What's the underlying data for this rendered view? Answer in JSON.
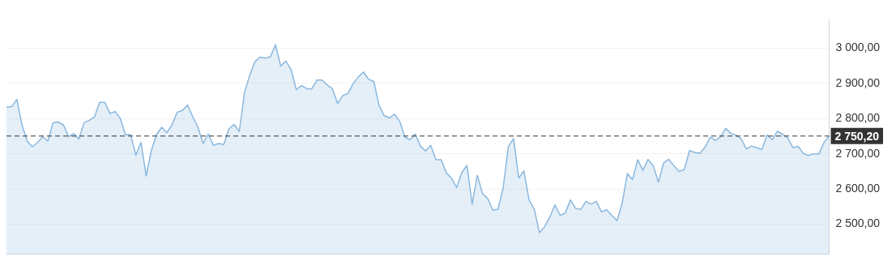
{
  "chart_data": {
    "type": "area",
    "categories": [
      null,
      null,
      null,
      null,
      null,
      null,
      null,
      null,
      null,
      null,
      null,
      null,
      null,
      null,
      null,
      null,
      null,
      null,
      null,
      null,
      null,
      null,
      null,
      null,
      null,
      null,
      null,
      null,
      null,
      null,
      null,
      null,
      null,
      null,
      null,
      null,
      null,
      null,
      null,
      null,
      null,
      null,
      null,
      null,
      null,
      null,
      null,
      null,
      null,
      null,
      null,
      null,
      null,
      null,
      null,
      null,
      null,
      null,
      null,
      null,
      null,
      null,
      null,
      null,
      null,
      null,
      null,
      null,
      null,
      null,
      null,
      null,
      null,
      null,
      null,
      null,
      null,
      null,
      null,
      null,
      null,
      null,
      null,
      null,
      null,
      null,
      null,
      null,
      null,
      null,
      null,
      null,
      null,
      null,
      null,
      null,
      null,
      null,
      null,
      null,
      null,
      null,
      null,
      null,
      null,
      null,
      null,
      null,
      null,
      null,
      null,
      null,
      null,
      null,
      null,
      null,
      null,
      null,
      null,
      null,
      null,
      null,
      null,
      null,
      null,
      null,
      null,
      null,
      null,
      null,
      null,
      null,
      null,
      null,
      null,
      null,
      null,
      null,
      null,
      null,
      null,
      null,
      null,
      null,
      null,
      null,
      null,
      null,
      null,
      null,
      null,
      null,
      null,
      null,
      null,
      null,
      null,
      null,
      null,
      null
    ],
    "series": [
      {
        "color": "#8ab8de",
        "values": [
          2832,
          2834,
          2854,
          2782,
          2736,
          2720,
          2732,
          2748,
          2736,
          2788,
          2790,
          2782,
          2749,
          2757,
          2742,
          2788,
          2795,
          2804,
          2846,
          2846,
          2814,
          2820,
          2800,
          2754,
          2754,
          2696,
          2732,
          2637,
          2709,
          2755,
          2775,
          2760,
          2782,
          2818,
          2823,
          2838,
          2805,
          2775,
          2729,
          2756,
          2724,
          2729,
          2726,
          2771,
          2783,
          2763,
          2874,
          2922,
          2961,
          2974,
          2971,
          2975,
          3009,
          2949,
          2963,
          2939,
          2882,
          2893,
          2885,
          2884,
          2909,
          2909,
          2895,
          2884,
          2843,
          2865,
          2871,
          2899,
          2918,
          2932,
          2911,
          2905,
          2837,
          2808,
          2802,
          2812,
          2792,
          2747,
          2740,
          2756,
          2722,
          2708,
          2724,
          2683,
          2683,
          2646,
          2631,
          2604,
          2647,
          2667,
          2557,
          2639,
          2587,
          2573,
          2540,
          2543,
          2604,
          2720,
          2743,
          2631,
          2651,
          2569,
          2543,
          2476,
          2493,
          2520,
          2555,
          2525,
          2532,
          2569,
          2545,
          2542,
          2565,
          2557,
          2565,
          2535,
          2541,
          2525,
          2510,
          2560,
          2644,
          2627,
          2683,
          2653,
          2684,
          2666,
          2619,
          2674,
          2684,
          2666,
          2650,
          2655,
          2709,
          2704,
          2701,
          2718,
          2747,
          2738,
          2748,
          2772,
          2758,
          2753,
          2742,
          2714,
          2722,
          2717,
          2712,
          2753,
          2740,
          2764,
          2755,
          2745,
          2717,
          2721,
          2701,
          2695,
          2700,
          2699,
          2732,
          2750.2
        ]
      }
    ],
    "ylim": [
      2415,
      3080
    ],
    "yticks": [
      {
        "value": 2500,
        "label": "2 500,00"
      },
      {
        "value": 2600,
        "label": "2 600,00"
      },
      {
        "value": 2700,
        "label": "2 700,00"
      },
      {
        "value": 2800,
        "label": "2 800,00"
      },
      {
        "value": 2900,
        "label": "2 900,00"
      },
      {
        "value": 3000,
        "label": "3 000,00"
      }
    ],
    "ref_lines": [
      {
        "axis": "y",
        "value": 2750.2,
        "label": "2 750,20",
        "color": "#333333",
        "line_style": "dashed"
      }
    ],
    "grid": "y",
    "legend": false
  }
}
